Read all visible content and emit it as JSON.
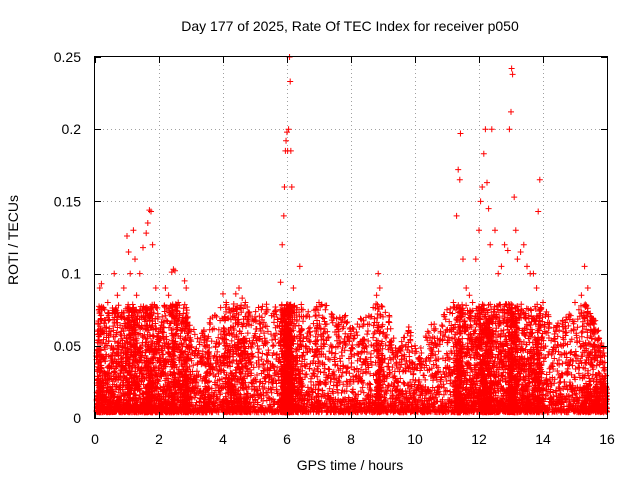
{
  "chart_data": {
    "type": "scatter",
    "title": "Day 177 of 2025, Rate Of TEC Index for receiver p050",
    "xlabel": "GPS time / hours",
    "ylabel": "ROTI / TECUs",
    "xlim": [
      0,
      16
    ],
    "ylim": [
      0,
      0.25
    ],
    "x_ticks": [
      0,
      2,
      4,
      6,
      8,
      10,
      12,
      14,
      16
    ],
    "x_tick_labels": [
      "0",
      "2",
      "4",
      "6",
      "8",
      "10",
      "12",
      "14",
      "16"
    ],
    "y_ticks": [
      0,
      0.05,
      0.1,
      0.15,
      0.2,
      0.25
    ],
    "y_tick_labels": [
      "0",
      "0.05",
      "0.1",
      "0.15",
      "0.2",
      "0.25"
    ],
    "grid": true,
    "marker": "+",
    "color": "#ff0000",
    "series": [
      {
        "name": "ROTI",
        "points": [
          [
            0.05,
            0.045
          ],
          [
            0.1,
            0.065
          ],
          [
            0.15,
            0.09
          ],
          [
            0.2,
            0.093
          ],
          [
            0.3,
            0.075
          ],
          [
            0.4,
            0.08
          ],
          [
            0.5,
            0.06
          ],
          [
            0.6,
            0.1
          ],
          [
            0.7,
            0.085
          ],
          [
            0.8,
            0.07
          ],
          [
            0.9,
            0.09
          ],
          [
            1.0,
            0.126
          ],
          [
            1.05,
            0.115
          ],
          [
            1.1,
            0.1
          ],
          [
            1.2,
            0.13
          ],
          [
            1.25,
            0.11
          ],
          [
            1.3,
            0.085
          ],
          [
            1.4,
            0.1
          ],
          [
            1.5,
            0.118
          ],
          [
            1.6,
            0.128
          ],
          [
            1.65,
            0.135
          ],
          [
            1.7,
            0.144
          ],
          [
            1.75,
            0.143
          ],
          [
            1.8,
            0.12
          ],
          [
            1.9,
            0.09
          ],
          [
            2.0,
            0.06
          ],
          [
            2.1,
            0.07
          ],
          [
            2.2,
            0.09
          ],
          [
            2.3,
            0.085
          ],
          [
            2.4,
            0.101
          ],
          [
            2.45,
            0.103
          ],
          [
            2.5,
            0.102
          ],
          [
            2.6,
            0.08
          ],
          [
            2.7,
            0.065
          ],
          [
            2.8,
            0.095
          ],
          [
            2.85,
            0.09
          ],
          [
            2.9,
            0.07
          ],
          [
            3.0,
            0.06
          ],
          [
            3.2,
            0.055
          ],
          [
            3.4,
            0.06
          ],
          [
            3.5,
            0.05
          ],
          [
            3.6,
            0.065
          ],
          [
            3.8,
            0.07
          ],
          [
            4.0,
            0.086
          ],
          [
            4.1,
            0.08
          ],
          [
            4.2,
            0.075
          ],
          [
            4.3,
            0.07
          ],
          [
            4.4,
            0.086
          ],
          [
            4.5,
            0.09
          ],
          [
            4.6,
            0.083
          ],
          [
            4.7,
            0.08
          ],
          [
            4.8,
            0.07
          ],
          [
            5.0,
            0.07
          ],
          [
            5.2,
            0.075
          ],
          [
            5.4,
            0.075
          ],
          [
            5.6,
            0.07
          ],
          [
            5.8,
            0.094
          ],
          [
            5.85,
            0.12
          ],
          [
            5.9,
            0.14
          ],
          [
            5.92,
            0.16
          ],
          [
            5.95,
            0.185
          ],
          [
            5.97,
            0.192
          ],
          [
            6.0,
            0.198
          ],
          [
            6.02,
            0.185
          ],
          [
            6.05,
            0.2
          ],
          [
            6.08,
            0.25
          ],
          [
            6.1,
            0.233
          ],
          [
            6.12,
            0.185
          ],
          [
            6.15,
            0.16
          ],
          [
            6.2,
            0.09
          ],
          [
            6.3,
            0.075
          ],
          [
            6.4,
            0.105
          ],
          [
            6.5,
            0.075
          ],
          [
            6.7,
            0.07
          ],
          [
            6.9,
            0.075
          ],
          [
            7.0,
            0.08
          ],
          [
            7.2,
            0.075
          ],
          [
            7.4,
            0.07
          ],
          [
            7.6,
            0.065
          ],
          [
            7.8,
            0.07
          ],
          [
            8.0,
            0.06
          ],
          [
            8.2,
            0.065
          ],
          [
            8.4,
            0.065
          ],
          [
            8.6,
            0.07
          ],
          [
            8.8,
            0.085
          ],
          [
            8.85,
            0.1
          ],
          [
            8.9,
            0.09
          ],
          [
            9.0,
            0.07
          ],
          [
            9.2,
            0.07
          ],
          [
            9.4,
            0.045
          ],
          [
            9.6,
            0.05
          ],
          [
            9.8,
            0.06
          ],
          [
            10.0,
            0.05
          ],
          [
            10.2,
            0.045
          ],
          [
            10.4,
            0.06
          ],
          [
            10.6,
            0.065
          ],
          [
            10.8,
            0.06
          ],
          [
            11.0,
            0.075
          ],
          [
            11.2,
            0.08
          ],
          [
            11.3,
            0.14
          ],
          [
            11.35,
            0.172
          ],
          [
            11.4,
            0.165
          ],
          [
            11.42,
            0.197
          ],
          [
            11.5,
            0.11
          ],
          [
            11.6,
            0.09
          ],
          [
            11.7,
            0.085
          ],
          [
            11.8,
            0.08
          ],
          [
            11.9,
            0.11
          ],
          [
            12.0,
            0.13
          ],
          [
            12.05,
            0.15
          ],
          [
            12.1,
            0.16
          ],
          [
            12.15,
            0.183
          ],
          [
            12.2,
            0.2
          ],
          [
            12.25,
            0.163
          ],
          [
            12.3,
            0.145
          ],
          [
            12.35,
            0.12
          ],
          [
            12.4,
            0.2
          ],
          [
            12.5,
            0.13
          ],
          [
            12.6,
            0.1
          ],
          [
            12.7,
            0.105
          ],
          [
            12.8,
            0.12
          ],
          [
            12.9,
            0.116
          ],
          [
            12.95,
            0.2
          ],
          [
            13.0,
            0.212
          ],
          [
            13.02,
            0.242
          ],
          [
            13.05,
            0.238
          ],
          [
            13.1,
            0.153
          ],
          [
            13.15,
            0.13
          ],
          [
            13.2,
            0.11
          ],
          [
            13.3,
            0.115
          ],
          [
            13.4,
            0.12
          ],
          [
            13.5,
            0.105
          ],
          [
            13.6,
            0.1
          ],
          [
            13.7,
            0.1
          ],
          [
            13.8,
            0.09
          ],
          [
            13.85,
            0.143
          ],
          [
            13.9,
            0.165
          ],
          [
            14.0,
            0.08
          ],
          [
            14.2,
            0.065
          ],
          [
            14.4,
            0.06
          ],
          [
            14.6,
            0.065
          ],
          [
            14.8,
            0.07
          ],
          [
            15.0,
            0.08
          ],
          [
            15.2,
            0.085
          ],
          [
            15.3,
            0.105
          ],
          [
            15.4,
            0.09
          ],
          [
            15.5,
            0.07
          ],
          [
            15.6,
            0.065
          ],
          [
            15.7,
            0.06
          ],
          [
            15.8,
            0.05
          ],
          [
            15.9,
            0.045
          ],
          [
            16.0,
            0.02
          ]
        ]
      }
    ]
  }
}
